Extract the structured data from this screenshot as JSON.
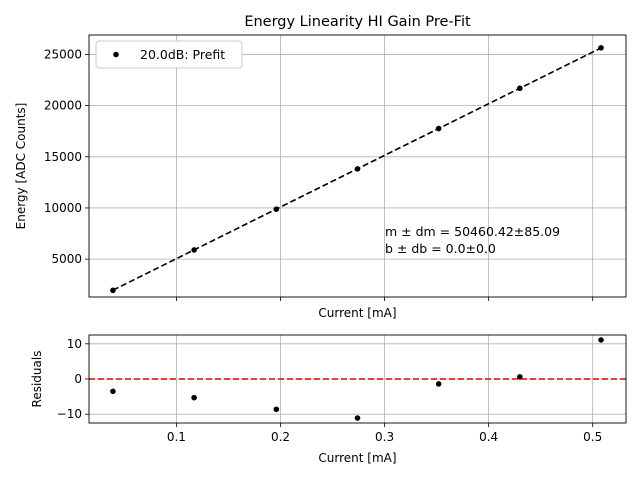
{
  "chart_data": [
    {
      "type": "scatter",
      "title": "Energy Linearity HI Gain Pre-Fit",
      "xlabel": "Current [mA]",
      "ylabel": "Energy [ADC Counts]",
      "xlim": [
        0.016,
        0.532
      ],
      "ylim": [
        1300,
        26900
      ],
      "xticks": [
        0.1,
        0.2,
        0.3,
        0.4,
        0.5
      ],
      "yticks": [
        5000,
        10000,
        15000,
        20000,
        25000
      ],
      "ytick_labels": [
        "5000",
        "10000",
        "15000",
        "20000",
        "25000"
      ],
      "grid": true,
      "legend_position": "top-left",
      "series": [
        {
          "name": "20.0dB: Prefit",
          "color": "#000000",
          "x": [
            0.039,
            0.117,
            0.196,
            0.274,
            0.352,
            0.43,
            0.508
          ],
          "y": [
            1950,
            5900,
            9880,
            13820,
            17760,
            21700,
            25650
          ]
        }
      ],
      "fit_line": {
        "slope": 50460.42,
        "intercept": 0.0,
        "style": "dashed",
        "color": "#000000"
      },
      "annotation": {
        "line1": "m ± dm = 50460.42±85.09",
        "line2": "b ± db = 0.0±0.0"
      }
    },
    {
      "type": "scatter",
      "title": "",
      "xlabel": "Current [mA]",
      "ylabel": "Residuals",
      "xlim": [
        0.016,
        0.532
      ],
      "ylim": [
        -12.5,
        12.5
      ],
      "xticks": [
        0.1,
        0.2,
        0.3,
        0.4,
        0.5
      ],
      "xtick_labels": [
        "0.1",
        "0.2",
        "0.3",
        "0.4",
        "0.5"
      ],
      "yticks": [
        -10,
        0,
        10
      ],
      "ytick_labels": [
        "−10",
        "0",
        "10"
      ],
      "grid": true,
      "reference_line": {
        "y": 0,
        "style": "dashed",
        "color": "#dd0000"
      },
      "series": [
        {
          "name": "",
          "color": "#000000",
          "x": [
            0.039,
            0.117,
            0.196,
            0.274,
            0.352,
            0.43,
            0.508
          ],
          "y": [
            -3.5,
            -5.3,
            -8.6,
            -11.1,
            -1.4,
            0.6,
            11.1
          ]
        }
      ]
    }
  ]
}
